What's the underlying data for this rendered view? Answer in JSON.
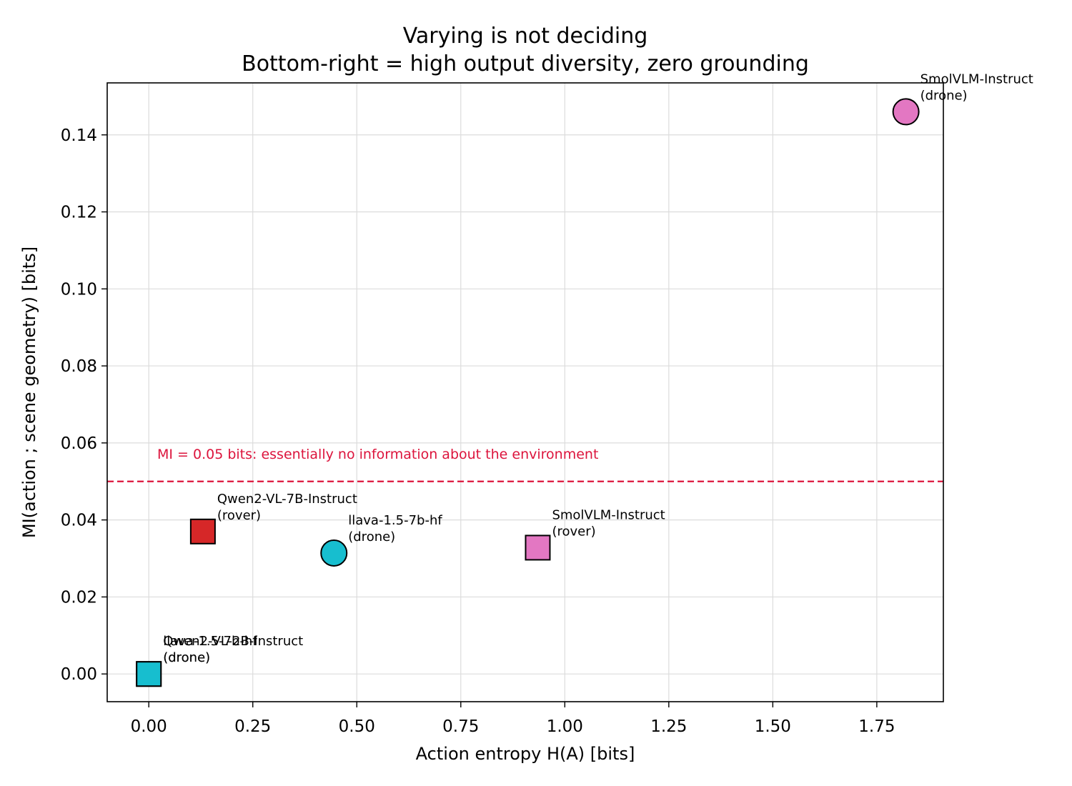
{
  "chart_data": {
    "type": "scatter",
    "title": "Varying is not deciding",
    "subtitle": "Bottom-right = high output diversity, zero grounding",
    "xlabel": "Action entropy H(A)  [bits]",
    "ylabel": "MI(action ; scene geometry)  [bits]",
    "xlim": [
      -0.1,
      1.91
    ],
    "ylim": [
      -0.0072,
      0.1535
    ],
    "x_ticks": [
      0.0,
      0.25,
      0.5,
      0.75,
      1.0,
      1.25,
      1.5,
      1.75
    ],
    "x_tick_labels": [
      "0.00",
      "0.25",
      "0.50",
      "0.75",
      "1.00",
      "1.25",
      "1.50",
      "1.75"
    ],
    "y_ticks": [
      0.0,
      0.02,
      0.04,
      0.06,
      0.08,
      0.1,
      0.12,
      0.14
    ],
    "y_tick_labels": [
      "0.00",
      "0.02",
      "0.04",
      "0.06",
      "0.08",
      "0.10",
      "0.12",
      "0.14"
    ],
    "grid": true,
    "threshold": {
      "y": 0.05,
      "label": "MI = 0.05 bits: essentially no information about the environment",
      "color": "#dc143c"
    },
    "points": [
      {
        "model": "Qwen2-VL-2B-Instruct",
        "platform": "(drone)",
        "x": 0.0,
        "y": 0.0,
        "marker": "square",
        "color": "#17becf"
      },
      {
        "model": "llava-1.5-7b-hf",
        "platform": "(drone)",
        "x": 0.0,
        "y": 0.0,
        "marker": "square",
        "color": "#17becf"
      },
      {
        "model": "Qwen2-VL-7B-Instruct",
        "platform": "(rover)",
        "x": 0.13,
        "y": 0.037,
        "marker": "square",
        "color": "#d62728"
      },
      {
        "model": "llava-1.5-7b-hf",
        "platform": "(drone)",
        "x": 0.445,
        "y": 0.0314,
        "marker": "circle",
        "color": "#17becf"
      },
      {
        "model": "SmolVLM-Instruct",
        "platform": "(rover)",
        "x": 0.935,
        "y": 0.0328,
        "marker": "square",
        "color": "#e377c2"
      },
      {
        "model": "SmolVLM-Instruct",
        "platform": "(drone)",
        "x": 1.82,
        "y": 0.146,
        "marker": "circle",
        "color": "#e377c2"
      }
    ]
  }
}
